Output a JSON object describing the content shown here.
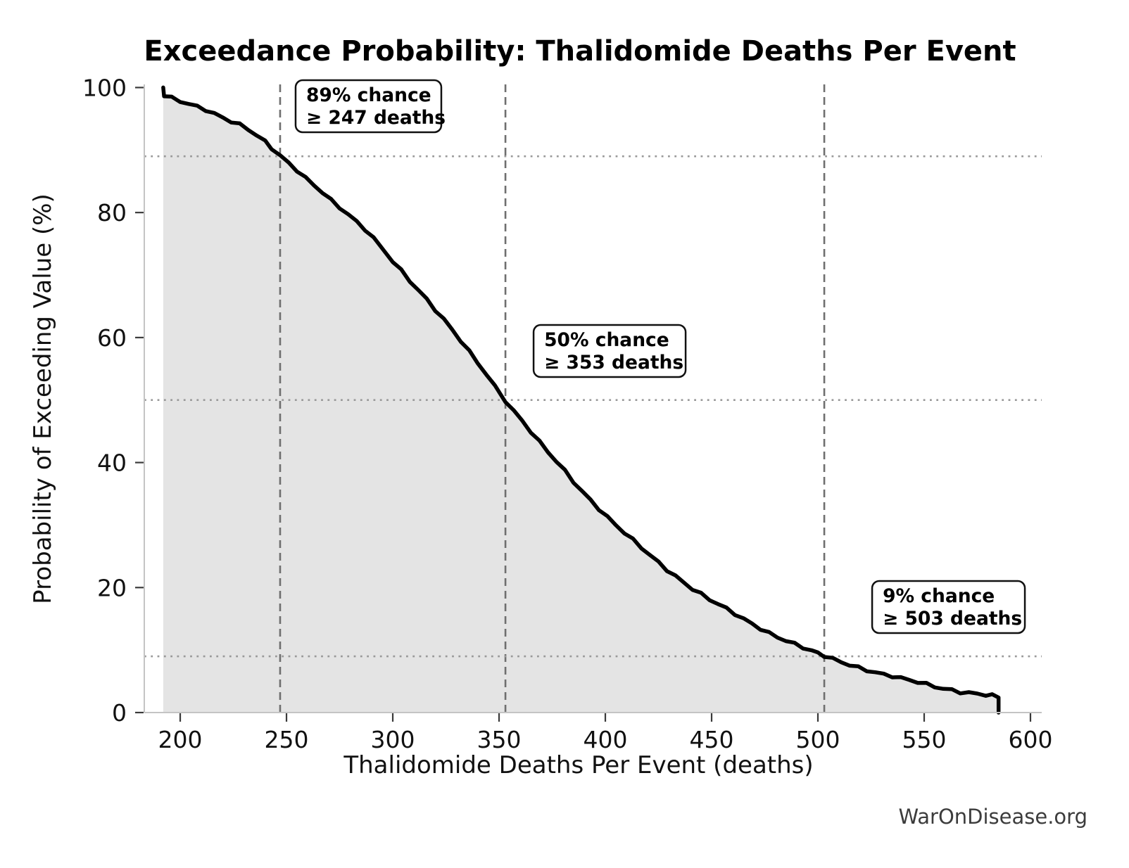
{
  "watermark": "WarOnDisease.org",
  "chart_data": {
    "type": "line",
    "title": "Exceedance Probability: Thalidomide Deaths Per Event",
    "xlabel": "Thalidomide Deaths Per Event (deaths)",
    "ylabel": "Probability of Exceeding Value (%)",
    "xlim": [
      183.1,
      605.3
    ],
    "ylim": [
      0,
      100.5
    ],
    "x_ticks": [
      200,
      250,
      300,
      350,
      400,
      450,
      500,
      550,
      600
    ],
    "y_ticks": [
      0,
      20,
      40,
      60,
      80,
      100
    ],
    "grid": "off",
    "legend": "none",
    "line_color": "#000000",
    "fill_under_curve": true,
    "fill_color": "#e4e4e4",
    "marker_line_color": "#6f6f6f",
    "reference_line_color": "#999999",
    "markers": [
      {
        "chance_pct": 89,
        "deaths": 247,
        "lines": [
          "89% chance",
          "≥ 247 deaths"
        ]
      },
      {
        "chance_pct": 50,
        "deaths": 353,
        "lines": [
          "50% chance",
          "≥ 353 deaths"
        ]
      },
      {
        "chance_pct": 9,
        "deaths": 503,
        "lines": [
          "9% chance",
          "≥ 503 deaths"
        ]
      }
    ],
    "x_min_value": 192,
    "x_max_value": 585,
    "points": [
      [
        192,
        100
      ],
      [
        192.4,
        98.6
      ],
      [
        196,
        98.2
      ],
      [
        200,
        97.7
      ],
      [
        204,
        97.3
      ],
      [
        208,
        96.9
      ],
      [
        212,
        96.5
      ],
      [
        216,
        95.9
      ],
      [
        220,
        95.3
      ],
      [
        224,
        94.7
      ],
      [
        228,
        94.1
      ],
      [
        232,
        93.3
      ],
      [
        236,
        92.3
      ],
      [
        240,
        91.2
      ],
      [
        243,
        90.2
      ],
      [
        247,
        89
      ],
      [
        251,
        87.9
      ],
      [
        255,
        86.8
      ],
      [
        259,
        85.6
      ],
      [
        263,
        84.5
      ],
      [
        267,
        83.3
      ],
      [
        271,
        82
      ],
      [
        275,
        80.8
      ],
      [
        279,
        79.6
      ],
      [
        283,
        78.4
      ],
      [
        287,
        77.2
      ],
      [
        291,
        75.8
      ],
      [
        295,
        74.3
      ],
      [
        300,
        72.3
      ],
      [
        304,
        70.8
      ],
      [
        308,
        69.2
      ],
      [
        312,
        67.7
      ],
      [
        316,
        66.1
      ],
      [
        320,
        64.4
      ],
      [
        324,
        62.8
      ],
      [
        328,
        61.1
      ],
      [
        332,
        59.4
      ],
      [
        336,
        57.7
      ],
      [
        340,
        56
      ],
      [
        344,
        54.2
      ],
      [
        348,
        52.3
      ],
      [
        353,
        50
      ],
      [
        357,
        48.3
      ],
      [
        361,
        46.6
      ],
      [
        365,
        44.9
      ],
      [
        369,
        43.2
      ],
      [
        373,
        41.6
      ],
      [
        377,
        40.1
      ],
      [
        381,
        38.6
      ],
      [
        385,
        37
      ],
      [
        389,
        35.5
      ],
      [
        393,
        34.1
      ],
      [
        397,
        32.7
      ],
      [
        401,
        31.3
      ],
      [
        405,
        30
      ],
      [
        409,
        28.7
      ],
      [
        413,
        27.5
      ],
      [
        417,
        26.3
      ],
      [
        421,
        25.1
      ],
      [
        425,
        24
      ],
      [
        429,
        22.9
      ],
      [
        433,
        21.9
      ],
      [
        437,
        20.9
      ],
      [
        441,
        19.9
      ],
      [
        445,
        19
      ],
      [
        449,
        18.1
      ],
      [
        453,
        17.3
      ],
      [
        457,
        16.5
      ],
      [
        461,
        15.7
      ],
      [
        465,
        14.9
      ],
      [
        469,
        14.2
      ],
      [
        473,
        13.5
      ],
      [
        477,
        12.8
      ],
      [
        481,
        12.2
      ],
      [
        485,
        11.6
      ],
      [
        489,
        11
      ],
      [
        493,
        10.4
      ],
      [
        497,
        9.8
      ],
      [
        500,
        9.4
      ],
      [
        503,
        9
      ],
      [
        507,
        8.5
      ],
      [
        511,
        8.1
      ],
      [
        515,
        7.7
      ],
      [
        519,
        7.3
      ],
      [
        523,
        6.9
      ],
      [
        527,
        6.5
      ],
      [
        531,
        6.1
      ],
      [
        535,
        5.8
      ],
      [
        539,
        5.4
      ],
      [
        543,
        5.1
      ],
      [
        547,
        4.8
      ],
      [
        551,
        4.5
      ],
      [
        555,
        4.2
      ],
      [
        559,
        3.9
      ],
      [
        563,
        3.7
      ],
      [
        567,
        3.4
      ],
      [
        571,
        3.2
      ],
      [
        575,
        3
      ],
      [
        579,
        2.8
      ],
      [
        582,
        2.6
      ],
      [
        585,
        2.4
      ],
      [
        585,
        0
      ]
    ]
  }
}
